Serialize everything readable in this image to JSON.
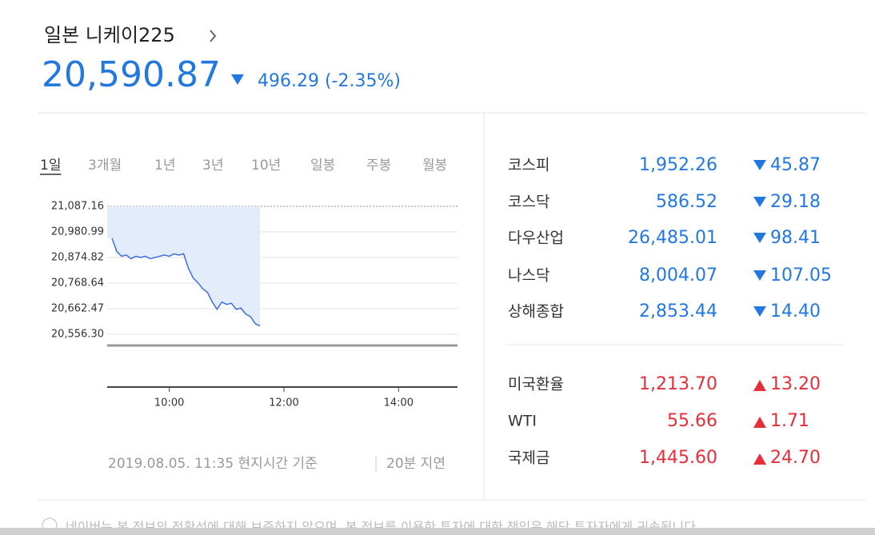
{
  "header": {
    "title": "일본 니케이225",
    "price": "20,590.87",
    "change": "496.29 (-2.35%)"
  },
  "tabs": {
    "items": [
      "1일",
      "3개월",
      "1년",
      "3년",
      "10년",
      "일봉",
      "주봉",
      "월봉"
    ],
    "selected": 0
  },
  "chart": {
    "type": "line",
    "color": "#3b6fe0",
    "area_color": "#e3ecfb",
    "x": [
      540,
      545,
      550,
      555,
      560,
      565,
      570,
      575,
      580,
      585,
      590,
      595,
      600,
      605,
      610,
      615,
      620,
      625,
      630,
      635,
      640,
      645,
      650,
      655,
      660,
      665,
      670,
      675,
      680,
      685,
      690,
      695
    ],
    "values": [
      20955,
      20900,
      20880,
      20885,
      20870,
      20880,
      20875,
      20880,
      20870,
      20875,
      20880,
      20885,
      20880,
      20890,
      20885,
      20890,
      20830,
      20790,
      20770,
      20745,
      20730,
      20690,
      20660,
      20690,
      20680,
      20685,
      20660,
      20665,
      20640,
      20630,
      20600,
      20591
    ],
    "xlim": [
      540,
      900
    ],
    "ylim": [
      20556.3,
      21087.16
    ],
    "xticks": [
      {
        "value": 600,
        "label": "10:00"
      },
      {
        "value": 720,
        "label": "12:00"
      },
      {
        "value": 840,
        "label": "14:00"
      }
    ],
    "yticks": [
      {
        "value": 21087.16,
        "label": "21,087.16"
      },
      {
        "value": 20980.99,
        "label": "20,980.99"
      },
      {
        "value": 20874.82,
        "label": "20,874.82"
      },
      {
        "value": 20768.64,
        "label": "20,768.64"
      },
      {
        "value": 20662.47,
        "label": "20,662.47"
      },
      {
        "value": 20556.3,
        "label": "20,556.30"
      }
    ],
    "grid": true
  },
  "footer": {
    "time": "2019.08.05. 11:35 현지시간 기준",
    "delay": "20분 지연"
  },
  "markets": {
    "groups": [
      [
        {
          "name": "코스피",
          "value": "1,952.26",
          "change": "45.87",
          "direction": "down"
        },
        {
          "name": "코스닥",
          "value": "586.52",
          "change": "29.18",
          "direction": "down"
        },
        {
          "name": "다우산업",
          "value": "26,485.01",
          "change": "98.41",
          "direction": "down"
        },
        {
          "name": "나스닥",
          "value": "8,004.07",
          "change": "107.05",
          "direction": "down"
        },
        {
          "name": "상해종합",
          "value": "2,853.44",
          "change": "14.40",
          "direction": "down"
        }
      ],
      [
        {
          "name": "미국환율",
          "value": "1,213.70",
          "change": "13.20",
          "direction": "up"
        },
        {
          "name": "WTI",
          "value": "55.66",
          "change": "1.71",
          "direction": "up"
        },
        {
          "name": "국제금",
          "value": "1,445.60",
          "change": "24.70",
          "direction": "up"
        }
      ]
    ]
  },
  "disclaimer": "네이버는 본 정보의 정확성에 대해 보증하지 않으며, 본 정보를 이용한 투자에 대한 책임은 해당 투자자에게 귀속됩니다."
}
